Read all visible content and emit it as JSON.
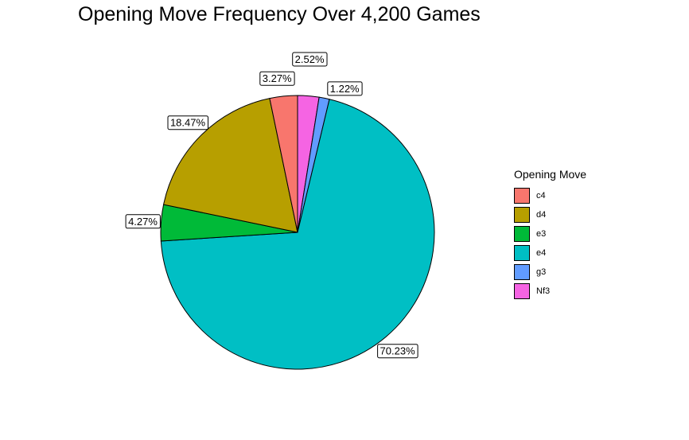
{
  "chart_data": {
    "type": "pie",
    "title": "Opening Move Frequency Over 4,200 Games",
    "legend_title": "Opening Move",
    "legend_position": "right",
    "slices": [
      {
        "name": "Nf3",
        "value": 2.52,
        "label": "2.52%",
        "color": "#F564E3"
      },
      {
        "name": "g3",
        "value": 1.22,
        "label": "1.22%",
        "color": "#619CFF"
      },
      {
        "name": "e4",
        "value": 70.23,
        "label": "70.23%",
        "color": "#00BFC4"
      },
      {
        "name": "e3",
        "value": 4.27,
        "label": "4.27%",
        "color": "#00BA38"
      },
      {
        "name": "d4",
        "value": 18.47,
        "label": "18.47%",
        "color": "#B79F00"
      },
      {
        "name": "c4",
        "value": 3.27,
        "label": "3.27%",
        "color": "#F8766D"
      }
    ],
    "legend": [
      {
        "name": "c4",
        "color": "#F8766D"
      },
      {
        "name": "d4",
        "color": "#B79F00"
      },
      {
        "name": "e3",
        "color": "#00BA38"
      },
      {
        "name": "e4",
        "color": "#00BFC4"
      },
      {
        "name": "g3",
        "color": "#619CFF"
      },
      {
        "name": "Nf3",
        "color": "#F564E3"
      }
    ]
  }
}
